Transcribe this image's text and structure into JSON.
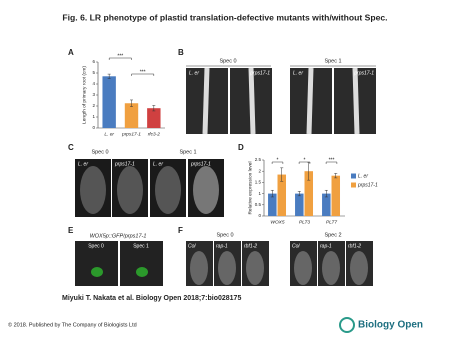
{
  "title": "Fig. 6. LR phenotype of plastid translation-defective mutants with/without Spec.",
  "panel_labels": [
    "A",
    "B",
    "C",
    "D",
    "E",
    "F"
  ],
  "panel_b": {
    "headers": [
      "Spec 0",
      "Spec 1"
    ],
    "image_labels": [
      "L. er",
      "prps17-1",
      "L. er",
      "prps17-1"
    ]
  },
  "panel_c": {
    "headers": [
      "Spec 0",
      "Spec 1"
    ],
    "image_labels": [
      "L. er",
      "prps17-1",
      "L. er",
      "prps17-1"
    ]
  },
  "panel_e": {
    "construct": "WOX5p::GFP/prps17-1",
    "headers": [
      "Spec 0",
      "Spec 1"
    ]
  },
  "panel_f": {
    "headers": [
      "Spec 0",
      "Spec 2"
    ],
    "image_labels": [
      "Col",
      "rap-1",
      "rbf1-2",
      "Col",
      "rap-1",
      "rbf1-2"
    ]
  },
  "chart_data": [
    {
      "type": "bar",
      "y_label": "Length of primary root (cm)",
      "categories": [
        "L. er",
        "prps17-1",
        "rfc3-2"
      ],
      "values": [
        4.7,
        2.25,
        1.8
      ],
      "errors": [
        0.2,
        0.3,
        0.25
      ],
      "colors": [
        "#4a7cc0",
        "#f0a040",
        "#d04040"
      ],
      "ylim": [
        0,
        6
      ],
      "yticks": [
        0,
        1,
        2,
        3,
        4,
        5,
        6
      ],
      "annotations": [
        "***",
        "***"
      ]
    },
    {
      "type": "bar",
      "y_label": "Relative expression level",
      "categories": [
        "WOX5",
        "PLT3",
        "PLT7"
      ],
      "series": [
        {
          "name": "L. er",
          "color": "#4a7cc0",
          "values": [
            1,
            1,
            1
          ],
          "errors": [
            0.15,
            0.1,
            0.15
          ]
        },
        {
          "name": "prps17-1",
          "color": "#f0a040",
          "values": [
            1.85,
            2.0,
            1.8
          ],
          "errors": [
            0.3,
            0.4,
            0.1
          ]
        }
      ],
      "ylim": [
        0,
        2.5
      ],
      "yticks": [
        0,
        0.5,
        1,
        1.5,
        2,
        2.5
      ],
      "annotations": [
        "*",
        "*",
        "***"
      ]
    }
  ],
  "citation": "Miyuki T. Nakata et al. Biology Open 2018;7:bio028175",
  "footer": {
    "copyright": "© 2018. Published by The Company of Biologists Ltd",
    "logo": "Biology Open"
  }
}
